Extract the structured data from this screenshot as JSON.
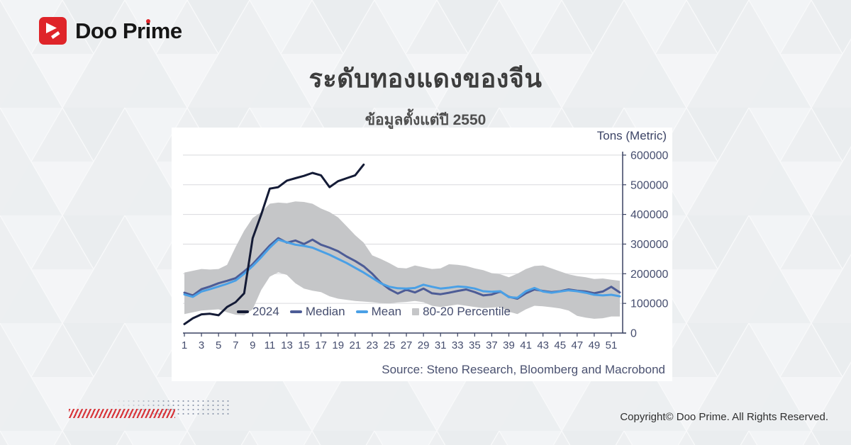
{
  "brand": {
    "logo_before_i": "Doo Pr",
    "logo_i": "i",
    "logo_after_i": "me"
  },
  "header": {
    "title": "ระดับทองแดงของจีน",
    "subtitle": "ข้อมูลตั้งแต่ปี 2550"
  },
  "chart_data": {
    "type": "line",
    "unit_label": "Tons (Metric)",
    "source": "Source: Steno Research, Bloomberg and Macrobond",
    "x": "week of year (1-52)",
    "x_tick_labels": [
      1,
      3,
      5,
      7,
      9,
      11,
      13,
      15,
      17,
      19,
      21,
      23,
      25,
      27,
      29,
      31,
      33,
      35,
      37,
      39,
      41,
      43,
      45,
      47,
      49,
      51
    ],
    "y_ticks": [
      0,
      100000,
      200000,
      300000,
      400000,
      500000,
      600000
    ],
    "ylim": [
      0,
      600000
    ],
    "grid": "horizontal",
    "legend_position": "bottom-inside",
    "colors": {
      "y2024": "#141b36",
      "median": "#4d5c96",
      "mean": "#4aa0e6",
      "band": "#c5c6c8",
      "axis": "#3a4262",
      "gridline": "#d9dade",
      "tick_text": "#454d6e"
    },
    "legend": [
      {
        "name": "2024",
        "color": "#141b36",
        "swatch": "line"
      },
      {
        "name": "Median",
        "color": "#4d5c96",
        "swatch": "line"
      },
      {
        "name": "Mean",
        "color": "#4aa0e6",
        "swatch": "line"
      },
      {
        "name": "80-20 Percentile",
        "color": "#c5c6c8",
        "swatch": "square"
      }
    ],
    "series": [
      {
        "name": "2024",
        "type": "line",
        "values": [
          30000,
          50000,
          63000,
          65000,
          60000,
          88000,
          104000,
          134000,
          320000,
          400000,
          487000,
          492000,
          514000,
          522000,
          530000,
          540000,
          532000,
          492000,
          512000,
          522000,
          532000,
          568000
        ]
      },
      {
        "name": "Median",
        "type": "line",
        "values": [
          136000,
          127000,
          148000,
          157000,
          168000,
          176000,
          185000,
          208000,
          232000,
          264000,
          295000,
          320000,
          305000,
          312000,
          300000,
          315000,
          298000,
          288000,
          276000,
          258000,
          243000,
          225000,
          200000,
          170000,
          148000,
          133000,
          146000,
          137000,
          150000,
          134000,
          131000,
          136000,
          142000,
          147000,
          138000,
          127000,
          130000,
          140000,
          122000,
          116000,
          134000,
          147000,
          142000,
          138000,
          141000,
          147000,
          143000,
          140000,
          134000,
          140000,
          156000,
          137000
        ]
      },
      {
        "name": "Mean",
        "type": "line",
        "values": [
          130000,
          122000,
          140000,
          148000,
          157000,
          166000,
          177000,
          200000,
          226000,
          256000,
          288000,
          315000,
          306000,
          298000,
          294000,
          288000,
          276000,
          264000,
          250000,
          236000,
          220000,
          204000,
          186000,
          168000,
          156000,
          151000,
          150000,
          152000,
          163000,
          156000,
          150000,
          153000,
          157000,
          155000,
          150000,
          141000,
          139000,
          141000,
          121000,
          119000,
          141000,
          152000,
          140000,
          136000,
          140000,
          144000,
          141000,
          136000,
          129000,
          127000,
          129000,
          124000
        ]
      },
      {
        "name": "80-20 Percentile",
        "type": "band",
        "upper": [
          204000,
          210000,
          216000,
          214000,
          216000,
          230000,
          290000,
          345000,
          388000,
          408000,
          436000,
          440000,
          438000,
          444000,
          442000,
          436000,
          420000,
          408000,
          390000,
          360000,
          330000,
          305000,
          262000,
          250000,
          236000,
          220000,
          218000,
          228000,
          222000,
          216000,
          218000,
          232000,
          230000,
          226000,
          218000,
          212000,
          202000,
          198000,
          188000,
          200000,
          216000,
          226000,
          228000,
          218000,
          208000,
          198000,
          192000,
          188000,
          182000,
          184000,
          180000,
          176000
        ],
        "lower": [
          64000,
          70000,
          76000,
          78000,
          80000,
          70000,
          62000,
          60000,
          80000,
          145000,
          190000,
          205000,
          196000,
          168000,
          150000,
          143000,
          138000,
          124000,
          116000,
          112000,
          108000,
          106000,
          104000,
          101000,
          100000,
          103000,
          105000,
          108000,
          104000,
          92000,
          88000,
          92000,
          96000,
          92000,
          88000,
          84000,
          86000,
          88000,
          72000,
          64000,
          80000,
          92000,
          90000,
          87000,
          83000,
          76000,
          58000,
          52000,
          48000,
          50000,
          56000,
          56000
        ]
      }
    ]
  },
  "footer": {
    "copyright": "Copyright© Doo Prime. All Rights Reserved."
  }
}
